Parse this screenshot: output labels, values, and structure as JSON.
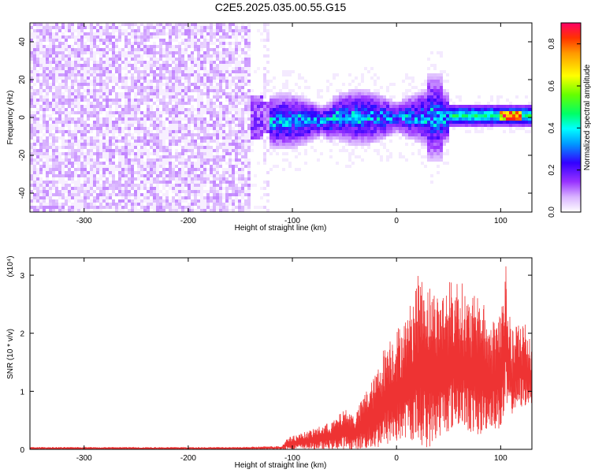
{
  "title": "C2E5.2025.035.00.55.G15",
  "chart_data": [
    {
      "type": "heatmap",
      "xlabel": "Height of straight line (km)",
      "ylabel": "Frequency (Hz)",
      "xlim": [
        -352,
        130
      ],
      "ylim": [
        -50,
        50
      ],
      "xticks": [
        -300,
        -200,
        -100,
        0,
        100
      ],
      "yticks": [
        -40,
        -20,
        0,
        20,
        40
      ],
      "colorbar": {
        "label": "Normalized spectral amplitude",
        "range": [
          0.0,
          0.9
        ],
        "ticks": [
          0.0,
          0.2,
          0.4,
          0.6,
          0.8
        ]
      },
      "regions": [
        {
          "x_range": [
            -352,
            -140
          ],
          "frequency_range": [
            -50,
            50
          ],
          "amplitude": "low (0.0-0.1)",
          "pattern": "broadband noise"
        },
        {
          "x_range": [
            -140,
            50
          ],
          "frequency_center": 0,
          "frequency_halfwidth": 15,
          "amplitude": "0.1-0.4",
          "pattern": "narrow band near 0 Hz"
        },
        {
          "x_range": [
            50,
            130
          ],
          "frequency_center": 1,
          "frequency_halfwidth": 5,
          "amplitude": "0.3-0.9",
          "pattern": "strong narrow band, peak near 110 km"
        }
      ]
    },
    {
      "type": "line",
      "xlabel": "Height of straight line (km)",
      "ylabel": "SNR (10 * v/v)",
      "multiplier": "(x10⁴)",
      "xlim": [
        -352,
        130
      ],
      "ylim": [
        0,
        3.3
      ],
      "xticks": [
        -300,
        -200,
        -100,
        0,
        100
      ],
      "yticks": [
        0,
        1,
        2,
        3
      ],
      "series": [
        {
          "color": "#ee3333",
          "envelope": {
            "x": [
              -352,
              -150,
              -110,
              -105,
              -80,
              -60,
              -50,
              -40,
              -30,
              -20,
              -10,
              0,
              10,
              20,
              30,
              40,
              50,
              60,
              70,
              80,
              90,
              100,
              105,
              110,
              120,
              130
            ],
            "max": [
              0.04,
              0.04,
              0.06,
              0.2,
              0.35,
              0.5,
              0.7,
              0.6,
              1.0,
              1.3,
              1.9,
              2.1,
              2.3,
              3.0,
              2.9,
              2.7,
              2.9,
              3.0,
              2.6,
              2.7,
              2.2,
              2.5,
              3.3,
              2.0,
              2.4,
              2.0
            ],
            "min": [
              0.0,
              0.0,
              0.0,
              0.0,
              0.0,
              0.0,
              0.0,
              0.0,
              0.0,
              0.0,
              0.05,
              0.1,
              0.2,
              0.1,
              0.0,
              0.2,
              0.3,
              0.4,
              0.3,
              0.2,
              0.4,
              0.3,
              0.6,
              0.6,
              0.7,
              0.8
            ]
          }
        }
      ]
    }
  ]
}
